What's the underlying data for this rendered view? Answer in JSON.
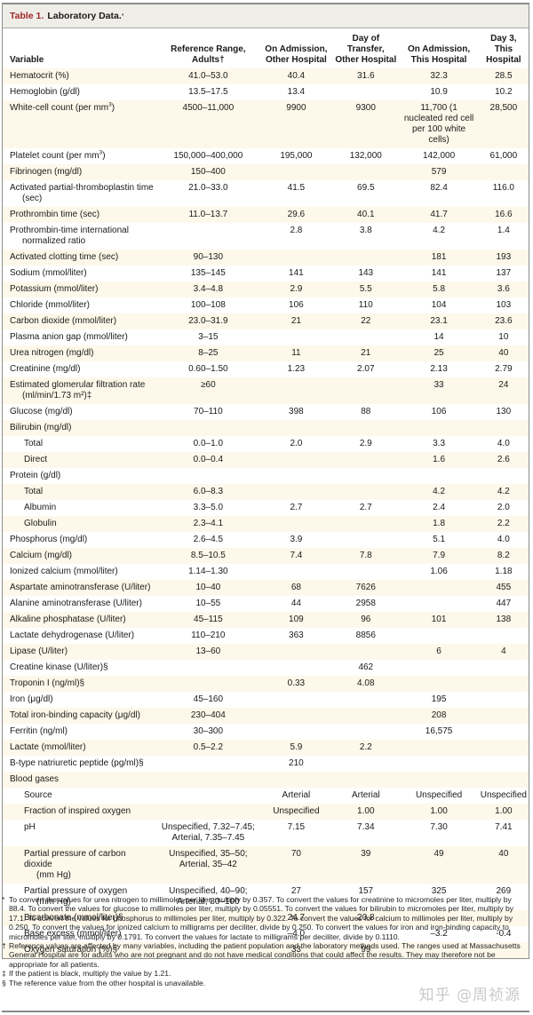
{
  "title": {
    "number": "Table 1.",
    "text": "Laboratory Data.",
    "mark": "*"
  },
  "columns": [
    {
      "label": "Variable"
    },
    {
      "label_line1": "Reference Range,",
      "label_line2": "Adults†"
    },
    {
      "label_line1": "On Admission,",
      "label_line2": "Other Hospital"
    },
    {
      "label_line1": "Day of Transfer,",
      "label_line2": "Other Hospital"
    },
    {
      "label_line1": "On Admission,",
      "label_line2": "This Hospital"
    },
    {
      "label_line1": "Day 3,",
      "label_line2": "This Hospital"
    }
  ],
  "rows": [
    {
      "name": "Hematocrit (%)",
      "ref": "41.0–53.0",
      "c1": "40.4",
      "c2": "31.6",
      "c3": "32.3",
      "c4": "28.5"
    },
    {
      "name": "Hemoglobin (g/dl)",
      "ref": "13.5–17.5",
      "c1": "13.4",
      "c2": "",
      "c3": "10.9",
      "c4": "10.2"
    },
    {
      "name": "White-cell count (per mm",
      "sup": "3",
      "name_tail": ")",
      "ref": "4500–11,000",
      "c1": "9900",
      "c2": "9300",
      "c3": "11,700 (1 nucleated red cell per 100 white cells)",
      "c4": "28,500"
    },
    {
      "name": "Platelet count (per mm",
      "sup": "3",
      "name_tail": ")",
      "ref": "150,000–400,000",
      "c1": "195,000",
      "c2": "132,000",
      "c3": "142,000",
      "c4": "61,000"
    },
    {
      "name": "Fibrinogen (mg/dl)",
      "ref": "150–400",
      "c1": "",
      "c2": "",
      "c3": "579",
      "c4": ""
    },
    {
      "name": "Activated partial-thromboplastin time",
      "cont": "(sec)",
      "ref": "21.0–33.0",
      "c1": "41.5",
      "c2": "69.5",
      "c3": "82.4",
      "c4": "116.0"
    },
    {
      "name": "Prothrombin time (sec)",
      "ref": "11.0–13.7",
      "c1": "29.6",
      "c2": "40.1",
      "c3": "41.7",
      "c4": "16.6"
    },
    {
      "name": "Prothrombin-time international",
      "cont": "normalized ratio",
      "ref": "",
      "c1": "2.8",
      "c2": "3.8",
      "c3": "4.2",
      "c4": "1.4"
    },
    {
      "name": "Activated clotting time (sec)",
      "ref": "90–130",
      "c1": "",
      "c2": "",
      "c3": "181",
      "c4": "193"
    },
    {
      "name": "Sodium (mmol/liter)",
      "ref": "135–145",
      "c1": "141",
      "c2": "143",
      "c3": "141",
      "c4": "137"
    },
    {
      "name": "Potassium (mmol/liter)",
      "ref": "3.4–4.8",
      "c1": "2.9",
      "c2": "5.5",
      "c3": "5.8",
      "c4": "3.6"
    },
    {
      "name": "Chloride (mmol/liter)",
      "ref": "100–108",
      "c1": "106",
      "c2": "110",
      "c3": "104",
      "c4": "103"
    },
    {
      "name": "Carbon dioxide (mmol/liter)",
      "ref": "23.0–31.9",
      "c1": "21",
      "c2": "22",
      "c3": "23.1",
      "c4": "23.6"
    },
    {
      "name": "Plasma anion gap (mmol/liter)",
      "ref": "3–15",
      "c1": "",
      "c2": "",
      "c3": "14",
      "c4": "10"
    },
    {
      "name": "Urea nitrogen (mg/dl)",
      "ref": "8–25",
      "c1": "11",
      "c2": "21",
      "c3": "25",
      "c4": "40"
    },
    {
      "name": "Creatinine (mg/dl)",
      "ref": "0.60–1.50",
      "c1": "1.23",
      "c2": "2.07",
      "c3": "2.13",
      "c4": "2.79"
    },
    {
      "name": "Estimated glomerular filtration rate",
      "cont": "(ml/min/1.73 m²)‡",
      "ref": "≥60",
      "c1": "",
      "c2": "",
      "c3": "33",
      "c4": "24"
    },
    {
      "name": "Glucose (mg/dl)",
      "ref": "70–110",
      "c1": "398",
      "c2": "88",
      "c3": "106",
      "c4": "130"
    },
    {
      "name": "Bilirubin (mg/dl)",
      "ref": "",
      "c1": "",
      "c2": "",
      "c3": "",
      "c4": ""
    },
    {
      "name": "Total",
      "sub": true,
      "ref": "0.0–1.0",
      "c1": "2.0",
      "c2": "2.9",
      "c3": "3.3",
      "c4": "4.0"
    },
    {
      "name": "Direct",
      "sub": true,
      "ref": "0.0–0.4",
      "c1": "",
      "c2": "",
      "c3": "1.6",
      "c4": "2.6"
    },
    {
      "name": "Protein (g/dl)",
      "ref": "",
      "c1": "",
      "c2": "",
      "c3": "",
      "c4": ""
    },
    {
      "name": "Total",
      "sub": true,
      "ref": "6.0–8.3",
      "c1": "",
      "c2": "",
      "c3": "4.2",
      "c4": "4.2"
    },
    {
      "name": "Albumin",
      "sub": true,
      "ref": "3.3–5.0",
      "c1": "2.7",
      "c2": "2.7",
      "c3": "2.4",
      "c4": "2.0"
    },
    {
      "name": "Globulin",
      "sub": true,
      "ref": "2.3–4.1",
      "c1": "",
      "c2": "",
      "c3": "1.8",
      "c4": "2.2"
    },
    {
      "name": "Phosphorus (mg/dl)",
      "ref": "2.6–4.5",
      "c1": "3.9",
      "c2": "",
      "c3": "5.1",
      "c4": "4.0"
    },
    {
      "name": "Calcium (mg/dl)",
      "ref": "8.5–10.5",
      "c1": "7.4",
      "c2": "7.8",
      "c3": "7.9",
      "c4": "8.2"
    },
    {
      "name": "Ionized calcium (mmol/liter)",
      "ref": "1.14–1.30",
      "c1": "",
      "c2": "",
      "c3": "1.06",
      "c4": "1.18"
    },
    {
      "name": "Aspartate aminotransferase (U/liter)",
      "ref": "10–40",
      "c1": "68",
      "c2": "7626",
      "c3": "",
      "c4": "455"
    },
    {
      "name": "Alanine aminotransferase (U/liter)",
      "ref": "10–55",
      "c1": "44",
      "c2": "2958",
      "c3": "",
      "c4": "447"
    },
    {
      "name": "Alkaline phosphatase (U/liter)",
      "ref": "45–115",
      "c1": "109",
      "c2": "96",
      "c3": "101",
      "c4": "138"
    },
    {
      "name": "Lactate dehydrogenase (U/liter)",
      "ref": "110–210",
      "c1": "363",
      "c2": "8856",
      "c3": "",
      "c4": ""
    },
    {
      "name": "Lipase (U/liter)",
      "ref": "13–60",
      "c1": "",
      "c2": "",
      "c3": "6",
      "c4": "4"
    },
    {
      "name": "Creatine kinase (U/liter)§",
      "ref": "",
      "c1": "",
      "c2": "462",
      "c3": "",
      "c4": ""
    },
    {
      "name": "Troponin I (ng/ml)§",
      "ref": "",
      "c1": "0.33",
      "c2": "4.08",
      "c3": "",
      "c4": ""
    },
    {
      "name": "Iron (μg/dl)",
      "ref": "45–160",
      "c1": "",
      "c2": "",
      "c3": "195",
      "c4": ""
    },
    {
      "name": "Total iron-binding capacity (μg/dl)",
      "ref": "230–404",
      "c1": "",
      "c2": "",
      "c3": "208",
      "c4": ""
    },
    {
      "name": "Ferritin (ng/ml)",
      "ref": "30–300",
      "c1": "",
      "c2": "",
      "c3": "16,575",
      "c4": ""
    },
    {
      "name": "Lactate (mmol/liter)",
      "ref": "0.5–2.2",
      "c1": "5.9",
      "c2": "2.2",
      "c3": "",
      "c4": ""
    },
    {
      "name": "B-type natriuretic peptide (pg/ml)§",
      "ref": "",
      "c1": "210",
      "c2": "",
      "c3": "",
      "c4": ""
    },
    {
      "name": "Blood gases",
      "ref": "",
      "c1": "",
      "c2": "",
      "c3": "",
      "c4": ""
    },
    {
      "name": "Source",
      "sub": true,
      "ref": "",
      "c1": "Arterial",
      "c2": "Arterial",
      "c3": "Unspecified",
      "c4": "Unspecified"
    },
    {
      "name": "Fraction of inspired oxygen",
      "sub": true,
      "ref": "",
      "c1": "Unspecified",
      "c2": "1.00",
      "c3": "1.00",
      "c4": "1.00"
    },
    {
      "name": "pH",
      "sub": true,
      "ref": "Unspecified, 7.32–7.45; Arterial, 7.35–7.45",
      "c1": "7.15",
      "c2": "7.34",
      "c3": "7.30",
      "c4": "7.41"
    },
    {
      "name": "Partial pressure of carbon dioxide",
      "cont": "(mm Hg)",
      "sub": true,
      "ref": "Unspecified, 35–50; Arterial, 35–42",
      "c1": "70",
      "c2": "39",
      "c3": "49",
      "c4": "40"
    },
    {
      "name": "Partial pressure of oxygen",
      "cont": "(mm Hg)",
      "sub": true,
      "ref": "Unspecified, 40–90; Arterial, 80–100",
      "c1": "27",
      "c2": "157",
      "c3": "325",
      "c4": "269"
    },
    {
      "name": "Bicarbonate (mmol/liter)§",
      "sub": true,
      "ref": "",
      "c1": "24.7",
      "c2": "20.8",
      "c3": "",
      "c4": ""
    },
    {
      "name": "Base excess (mmol/liter)",
      "sub": true,
      "ref": "",
      "c1": "–4.0",
      "c2": "",
      "c3": "–3.2",
      "c4": "-0.4"
    },
    {
      "name": "Oxygen saturation (%)§",
      "sub": true,
      "ref": "",
      "c1": "33",
      "c2": "99",
      "c3": "",
      "c4": ""
    }
  ],
  "footnotes": [
    {
      "mark": "*",
      "text": "To convert the values for urea nitrogen to millimoles per liter, multiply by 0.357. To convert the values for creatinine to micromoles per liter, multiply by 88.4. To convert the values for glucose to millimoles per liter, multiply by 0.05551. To convert the values for bilirubin to micromoles per liter, multiply by 17.1. To convert the values for phosphorus to millimoles per liter, multiply by 0.322. To convert the values for calcium to millimoles per liter, multiply by 0.250. To convert the values for ionized calcium to milligrams per deciliter, divide by 0.250. To convert the values for iron and iron-binding capacity to micromoles per liter, multiply by 0.1791. To convert the values for lactate to milligrams per deciliter, divide by 0.1110."
    },
    {
      "mark": "†",
      "text": "Reference values are affected by many variables, including the patient population and the laboratory methods used. The ranges used at Massachusetts General Hospital are for adults who are not pregnant and do not have medical conditions that could affect the results. They may therefore not be appropriate for all patients."
    },
    {
      "mark": "‡",
      "text": "If the patient is black, multiply the value by 1.21."
    },
    {
      "mark": "§",
      "text": "The reference value from the other hospital is unavailable."
    }
  ],
  "watermark": "知乎 @周祯源",
  "colors": {
    "title_number": "#a0272b",
    "title_bar_bg": "#efede8",
    "row_shade": "#fdf8e9",
    "frame_border": "#8c8c8c"
  }
}
